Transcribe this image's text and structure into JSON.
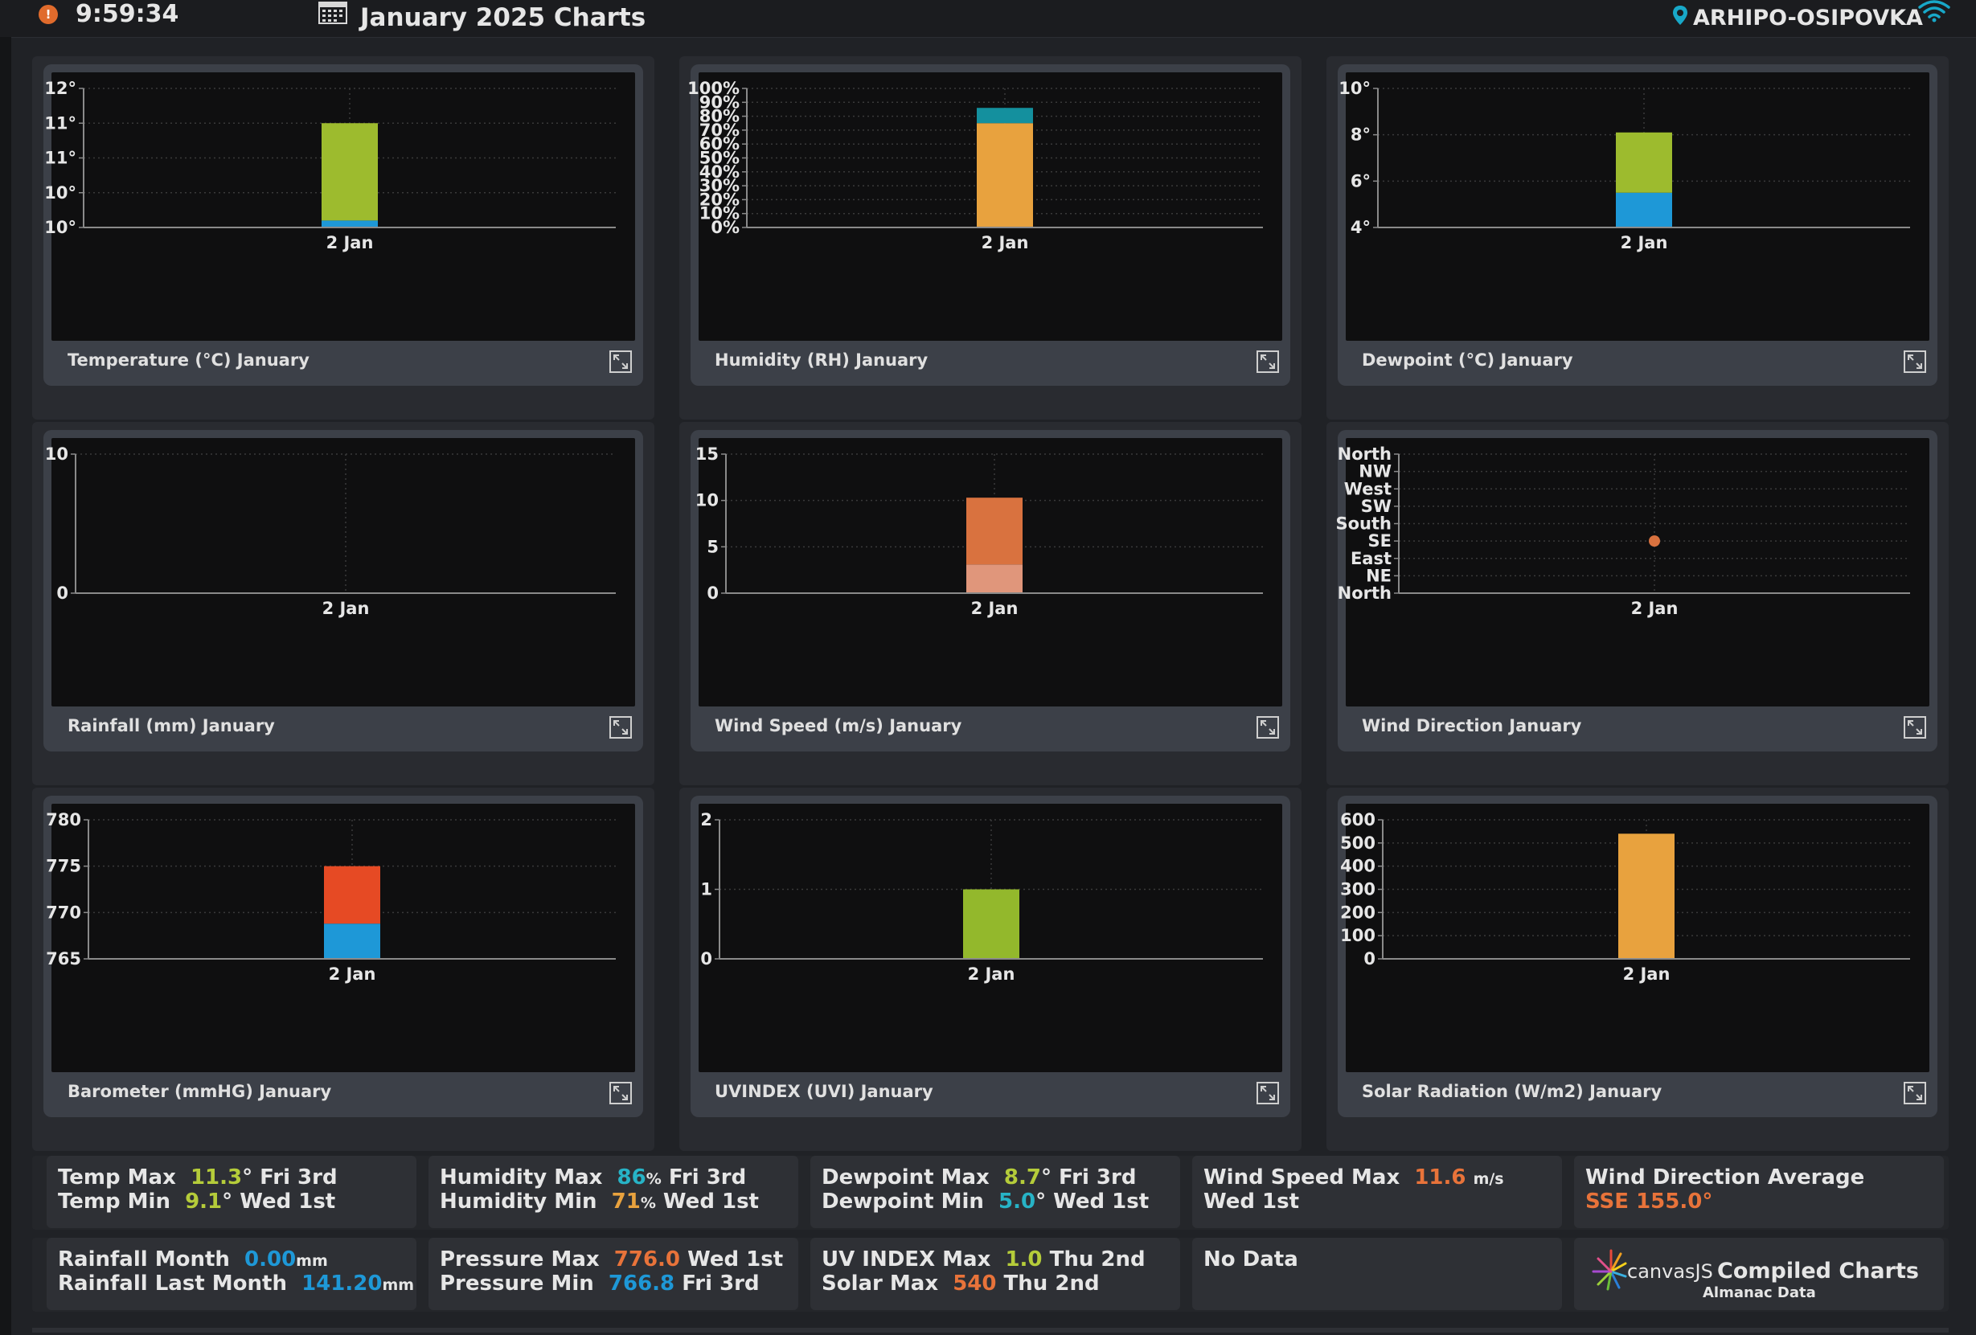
{
  "header": {
    "time": "9:59:34",
    "title": "January 2025 Charts",
    "location": "ARHIPO-OSIPOVKA"
  },
  "colors": {
    "green": "#9dbb2e",
    "blue": "#1e98d7",
    "orange": "#e8a23e",
    "teal": "#14909e",
    "windHigh": "#d9723f",
    "windLow": "#e0967b",
    "red": "#e64a24",
    "uvGreen": "#93b82c",
    "gridLine": "#3a3a3a"
  },
  "charts": [
    {
      "id": "temperature",
      "caption": "Temperature (°C) January",
      "xlabel": "2 Jan",
      "yTickLabels": [
        "10°",
        "10°",
        "11°",
        "11°",
        "12°"
      ],
      "ylim": [
        9.8,
        11.8
      ],
      "stack": [
        {
          "from": 9.8,
          "to": 9.9,
          "color": "blue"
        },
        {
          "from": 9.9,
          "to": 11.3,
          "color": "green"
        }
      ]
    },
    {
      "id": "humidity",
      "caption": "Humidity (RH) January",
      "xlabel": "2 Jan",
      "yTickLabels": [
        "0%",
        "10%",
        "20%",
        "30%",
        "40%",
        "50%",
        "60%",
        "70%",
        "80%",
        "90%",
        "100%"
      ],
      "ylim": [
        0,
        100
      ],
      "stack": [
        {
          "from": 0,
          "to": 75,
          "color": "orange"
        },
        {
          "from": 75,
          "to": 86,
          "color": "teal"
        }
      ]
    },
    {
      "id": "dewpoint",
      "caption": "Dewpoint (°C) January",
      "xlabel": "2 Jan",
      "yTickLabels": [
        "4°",
        "6°",
        "8°",
        "10°"
      ],
      "ylim": [
        4,
        10
      ],
      "stack": [
        {
          "from": 4,
          "to": 5.5,
          "color": "blue"
        },
        {
          "from": 5.5,
          "to": 8.1,
          "color": "green"
        }
      ]
    },
    {
      "id": "rainfall",
      "caption": "Rainfall (mm) January",
      "xlabel": "2 Jan",
      "yTickLabels": [
        "0",
        "10"
      ],
      "ylim": [
        0,
        10
      ],
      "stack": []
    },
    {
      "id": "windspeed",
      "caption": "Wind Speed (m/s) January",
      "xlabel": "2 Jan",
      "yTickLabels": [
        "0",
        "5",
        "10",
        "15"
      ],
      "ylim": [
        0,
        15
      ],
      "stack": [
        {
          "from": 0,
          "to": 3.1,
          "color": "windLow"
        },
        {
          "from": 3.1,
          "to": 10.3,
          "color": "windHigh"
        }
      ]
    },
    {
      "id": "winddirection",
      "caption": "Wind Direction January",
      "xlabel": "2 Jan",
      "yTickLabels": [
        "North",
        "NE",
        "East",
        "SE",
        "South",
        "SW",
        "West",
        "NW",
        "North"
      ],
      "ylim": [
        0,
        8
      ],
      "point": {
        "value": 3,
        "color": "windHigh"
      }
    },
    {
      "id": "barometer",
      "caption": "Barometer (mmHG) January",
      "xlabel": "2 Jan",
      "yTickLabels": [
        "765",
        "770",
        "775",
        "780"
      ],
      "ylim": [
        765,
        780
      ],
      "stack": [
        {
          "from": 765,
          "to": 768.8,
          "color": "blue"
        },
        {
          "from": 768.8,
          "to": 775,
          "color": "red"
        }
      ]
    },
    {
      "id": "uvindex",
      "caption": "UVINDEX (UVI) January",
      "xlabel": "2 Jan",
      "yTickLabels": [
        "0",
        "1",
        "2"
      ],
      "ylim": [
        0,
        2
      ],
      "stack": [
        {
          "from": 0,
          "to": 1.0,
          "color": "uvGreen"
        }
      ]
    },
    {
      "id": "solar",
      "caption": "Solar Radiation (W/m2) January",
      "xlabel": "2 Jan",
      "yTickLabels": [
        "0",
        "100",
        "200",
        "300",
        "400",
        "500",
        "600"
      ],
      "ylim": [
        0,
        600
      ],
      "stack": [
        {
          "from": 0,
          "to": 540,
          "color": "orange"
        }
      ]
    }
  ],
  "summary": {
    "temp_max_label": "Temp Max",
    "temp_max_value": "11.3",
    "temp_max_rest": "° Fri 3rd",
    "temp_min_label": "Temp Min",
    "temp_min_value": "9.1",
    "temp_min_rest": "° Wed 1st",
    "hum_max_label": "Humidity Max",
    "hum_max_value": "86",
    "hum_max_unit": "%",
    "hum_max_rest": " Fri 3rd",
    "hum_min_label": "Humidity Min",
    "hum_min_value": "71",
    "hum_min_unit": "%",
    "hum_min_rest": " Wed 1st",
    "dew_max_label": "Dewpoint Max",
    "dew_max_value": "8.7",
    "dew_max_rest": "° Fri 3rd",
    "dew_min_label": "Dewpoint Min",
    "dew_min_value": "5.0",
    "dew_min_rest": "° Wed 1st",
    "wind_max_label": "Wind Speed Max",
    "wind_max_value": "11.6",
    "wind_max_unit": "m/s",
    "wind_max_date": "Wed 1st",
    "wdir_label": "Wind Direction Average",
    "wdir_value": "SSE 155.0°",
    "rain_month_label": "Rainfall Month",
    "rain_month_value": "0.00",
    "rain_month_unit": "mm",
    "rain_last_label": "Rainfall Last Month",
    "rain_last_value": "141.20",
    "rain_last_unit": "mm",
    "press_max_label": "Pressure Max",
    "press_max_value": "776.0",
    "press_max_rest": " Wed 1st",
    "press_min_label": "Pressure Min",
    "press_min_value": "766.8",
    "press_min_rest": " Fri 3rd",
    "uv_max_label": "UV INDEX Max",
    "uv_max_value": "1.0",
    "uv_max_rest": " Thu 2nd",
    "solar_max_label": "Solar Max",
    "solar_max_value": "540",
    "solar_max_rest": " Thu 2nd",
    "no_data": "No Data",
    "brand": "canvasJS",
    "brand_title": "Compiled Charts",
    "brand_sub": "Almanac Data"
  }
}
